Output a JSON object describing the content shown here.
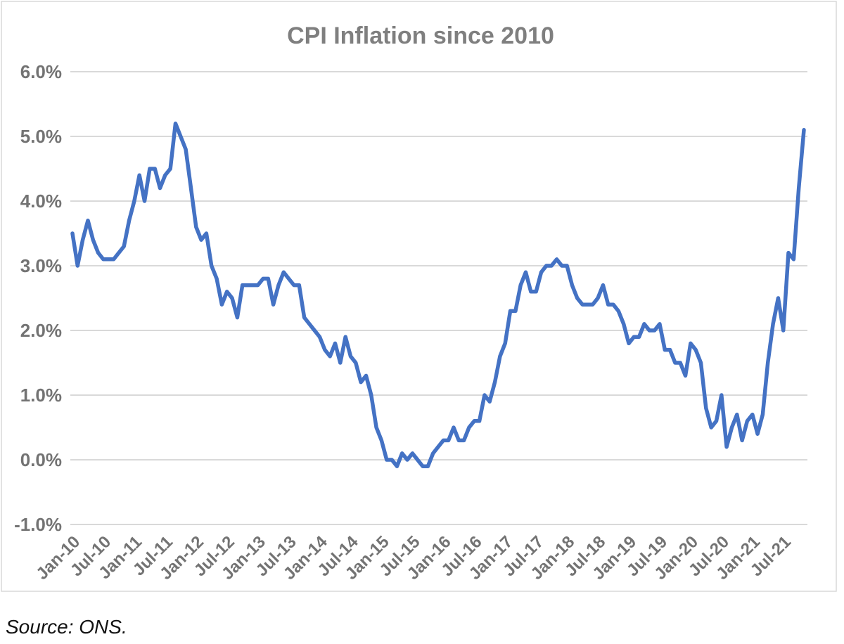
{
  "source_note": "Source: ONS.",
  "style": {
    "line_color": "#4472c4",
    "gridline_color": "#d9d9d9",
    "frame_border_color": "#d9d9d9",
    "title_color": "#7f7f7f",
    "tick_label_color": "#737373",
    "source_color": "#121212",
    "background": "#ffffff"
  },
  "chart_data": {
    "type": "line",
    "title": "CPI Inflation since 2010",
    "xlabel": "",
    "ylabel": "",
    "ylim": [
      -1.0,
      6.0
    ],
    "y_tick_labels": [
      "6.0%",
      "5.0%",
      "4.0%",
      "3.0%",
      "2.0%",
      "1.0%",
      "0.0%",
      "-1.0%"
    ],
    "y_tick_values": [
      6,
      5,
      4,
      3,
      2,
      1,
      0,
      -1
    ],
    "x_tick_labels": [
      "Jan-10",
      "Jul-10",
      "Jan-11",
      "Jul-11",
      "Jan-12",
      "Jul-12",
      "Jan-13",
      "Jul-13",
      "Jan-14",
      "Jul-14",
      "Jan-15",
      "Jul-15",
      "Jan-16",
      "Jul-16",
      "Jan-17",
      "Jul-17",
      "Jan-18",
      "Jul-18",
      "Jan-19",
      "Jul-19",
      "Jan-20",
      "Jul-20",
      "Jan-21",
      "Jul-21"
    ],
    "x_tick_every_n_months": 6,
    "grid": "horizontal",
    "legend": "none",
    "x": [
      "Jan-10",
      "Feb-10",
      "Mar-10",
      "Apr-10",
      "May-10",
      "Jun-10",
      "Jul-10",
      "Aug-10",
      "Sep-10",
      "Oct-10",
      "Nov-10",
      "Dec-10",
      "Jan-11",
      "Feb-11",
      "Mar-11",
      "Apr-11",
      "May-11",
      "Jun-11",
      "Jul-11",
      "Aug-11",
      "Sep-11",
      "Oct-11",
      "Nov-11",
      "Dec-11",
      "Jan-12",
      "Feb-12",
      "Mar-12",
      "Apr-12",
      "May-12",
      "Jun-12",
      "Jul-12",
      "Aug-12",
      "Sep-12",
      "Oct-12",
      "Nov-12",
      "Dec-12",
      "Jan-13",
      "Feb-13",
      "Mar-13",
      "Apr-13",
      "May-13",
      "Jun-13",
      "Jul-13",
      "Aug-13",
      "Sep-13",
      "Oct-13",
      "Nov-13",
      "Dec-13",
      "Jan-14",
      "Feb-14",
      "Mar-14",
      "Apr-14",
      "May-14",
      "Jun-14",
      "Jul-14",
      "Aug-14",
      "Sep-14",
      "Oct-14",
      "Nov-14",
      "Dec-14",
      "Jan-15",
      "Feb-15",
      "Mar-15",
      "Apr-15",
      "May-15",
      "Jun-15",
      "Jul-15",
      "Aug-15",
      "Sep-15",
      "Oct-15",
      "Nov-15",
      "Dec-15",
      "Jan-16",
      "Feb-16",
      "Mar-16",
      "Apr-16",
      "May-16",
      "Jun-16",
      "Jul-16",
      "Aug-16",
      "Sep-16",
      "Oct-16",
      "Nov-16",
      "Dec-16",
      "Jan-17",
      "Feb-17",
      "Mar-17",
      "Apr-17",
      "May-17",
      "Jun-17",
      "Jul-17",
      "Aug-17",
      "Sep-17",
      "Oct-17",
      "Nov-17",
      "Dec-17",
      "Jan-18",
      "Feb-18",
      "Mar-18",
      "Apr-18",
      "May-18",
      "Jun-18",
      "Jul-18",
      "Aug-18",
      "Sep-18",
      "Oct-18",
      "Nov-18",
      "Dec-18",
      "Jan-19",
      "Feb-19",
      "Mar-19",
      "Apr-19",
      "May-19",
      "Jun-19",
      "Jul-19",
      "Aug-19",
      "Sep-19",
      "Oct-19",
      "Nov-19",
      "Dec-19",
      "Jan-20",
      "Feb-20",
      "Mar-20",
      "Apr-20",
      "May-20",
      "Jun-20",
      "Jul-20",
      "Aug-20",
      "Sep-20",
      "Oct-20",
      "Nov-20",
      "Dec-20",
      "Jan-21",
      "Feb-21",
      "Mar-21",
      "Apr-21",
      "May-21",
      "Jun-21",
      "Jul-21",
      "Aug-21",
      "Sep-21",
      "Oct-21",
      "Nov-21"
    ],
    "values": [
      3.5,
      3.0,
      3.4,
      3.7,
      3.4,
      3.2,
      3.1,
      3.1,
      3.1,
      3.2,
      3.3,
      3.7,
      4.0,
      4.4,
      4.0,
      4.5,
      4.5,
      4.2,
      4.4,
      4.5,
      5.2,
      5.0,
      4.8,
      4.2,
      3.6,
      3.4,
      3.5,
      3.0,
      2.8,
      2.4,
      2.6,
      2.5,
      2.2,
      2.7,
      2.7,
      2.7,
      2.7,
      2.8,
      2.8,
      2.4,
      2.7,
      2.9,
      2.8,
      2.7,
      2.7,
      2.2,
      2.1,
      2.0,
      1.9,
      1.7,
      1.6,
      1.8,
      1.5,
      1.9,
      1.6,
      1.5,
      1.2,
      1.3,
      1.0,
      0.5,
      0.3,
      0.0,
      0.0,
      -0.1,
      0.1,
      0.0,
      0.1,
      0.0,
      -0.1,
      -0.1,
      0.1,
      0.2,
      0.3,
      0.3,
      0.5,
      0.3,
      0.3,
      0.5,
      0.6,
      0.6,
      1.0,
      0.9,
      1.2,
      1.6,
      1.8,
      2.3,
      2.3,
      2.7,
      2.9,
      2.6,
      2.6,
      2.9,
      3.0,
      3.0,
      3.1,
      3.0,
      3.0,
      2.7,
      2.5,
      2.4,
      2.4,
      2.4,
      2.5,
      2.7,
      2.4,
      2.4,
      2.3,
      2.1,
      1.8,
      1.9,
      1.9,
      2.1,
      2.0,
      2.0,
      2.1,
      1.7,
      1.7,
      1.5,
      1.5,
      1.3,
      1.8,
      1.7,
      1.5,
      0.8,
      0.5,
      0.6,
      1.0,
      0.2,
      0.5,
      0.7,
      0.3,
      0.6,
      0.7,
      0.4,
      0.7,
      1.5,
      2.1,
      2.5,
      2.0,
      3.2,
      3.1,
      4.2,
      5.1
    ]
  }
}
